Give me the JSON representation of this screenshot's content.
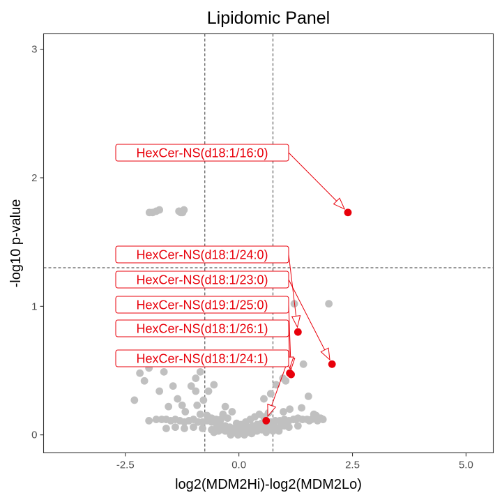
{
  "chart_data": {
    "type": "scatter",
    "title": "Lipidomic Panel",
    "xlabel": "log2(MDM2Hi)-log2(MDM2Lo)",
    "ylabel": "-log10 p-value",
    "xlim": [
      -4.3,
      5.6
    ],
    "ylim": [
      -0.14,
      3.12
    ],
    "xticks": [
      -2.5,
      0.0,
      2.5,
      5.0
    ],
    "xtick_labels": [
      "-2.5",
      "0.0",
      "2.5",
      "5.0"
    ],
    "yticks": [
      0,
      1,
      2,
      3
    ],
    "ytick_labels": [
      "0",
      "1",
      "2",
      "3"
    ],
    "grid": false,
    "reference_lines": {
      "vertical": [
        -0.75,
        0.75
      ],
      "horizontal": [
        1.3
      ]
    },
    "colors": {
      "background": "#ffffff",
      "nonsignificant": "#c0c0c0",
      "highlight": "#e8000b",
      "reference": "#333333"
    },
    "series": [
      {
        "role": "background",
        "points": [
          [
            -1.97,
            1.73
          ],
          [
            -1.9,
            1.73
          ],
          [
            -1.82,
            1.74
          ],
          [
            -1.75,
            1.75
          ],
          [
            -1.32,
            1.74
          ],
          [
            -1.28,
            1.73
          ],
          [
            -1.24,
            1.73
          ],
          [
            -1.21,
            1.75
          ],
          [
            1.22,
            1.02
          ],
          [
            1.98,
            1.02
          ],
          [
            -2.28,
            0.58
          ],
          [
            -1.98,
            0.52
          ],
          [
            -2.18,
            0.48
          ],
          [
            -1.65,
            0.49
          ],
          [
            -2.08,
            0.42
          ],
          [
            -1.15,
            0.57
          ],
          [
            -0.85,
            0.49
          ],
          [
            -0.95,
            0.44
          ],
          [
            -1.05,
            0.38
          ],
          [
            -1.45,
            0.38
          ],
          [
            -2.3,
            0.27
          ],
          [
            -1.75,
            0.34
          ],
          [
            -1.55,
            0.22
          ],
          [
            -1.35,
            0.28
          ],
          [
            -1.25,
            0.23
          ],
          [
            -1.18,
            0.18
          ],
          [
            -0.95,
            0.34
          ],
          [
            -0.92,
            0.23
          ],
          [
            -0.85,
            0.16
          ],
          [
            -0.78,
            0.27
          ],
          [
            -0.67,
            0.34
          ],
          [
            -0.55,
            0.39
          ],
          [
            -0.4,
            0.12
          ],
          [
            -0.3,
            0.22
          ],
          [
            -0.15,
            0.18
          ],
          [
            0.55,
            0.28
          ],
          [
            0.7,
            0.32
          ],
          [
            0.82,
            0.39
          ],
          [
            0.97,
            0.44
          ],
          [
            1.03,
            0.42
          ],
          [
            1.42,
            0.55
          ],
          [
            1.53,
            0.3
          ],
          [
            1.38,
            0.21
          ],
          [
            1.12,
            0.2
          ],
          [
            0.98,
            0.18
          ],
          [
            1.65,
            0.16
          ],
          [
            1.8,
            0.13
          ],
          [
            1.55,
            0.11
          ],
          [
            1.25,
            0.12
          ],
          [
            1.7,
            0.15
          ],
          [
            1.73,
            0.11
          ],
          [
            1.6,
            0.12
          ],
          [
            1.85,
            0.12
          ],
          [
            -1.98,
            0.11
          ],
          [
            -1.82,
            0.12
          ],
          [
            -1.7,
            0.12
          ],
          [
            -1.6,
            0.12
          ],
          [
            -1.5,
            0.11
          ],
          [
            -1.4,
            0.12
          ],
          [
            -1.3,
            0.11
          ],
          [
            -1.2,
            0.1
          ],
          [
            -1.1,
            0.11
          ],
          [
            -1.0,
            0.12
          ],
          [
            -0.9,
            0.1
          ],
          [
            -0.8,
            0.1
          ],
          [
            -0.7,
            0.11
          ],
          [
            -0.6,
            0.1
          ],
          [
            -0.5,
            0.09
          ],
          [
            -0.4,
            0.08
          ],
          [
            -0.3,
            0.07
          ],
          [
            -0.2,
            0.06
          ],
          [
            -0.1,
            0.05
          ],
          [
            0.0,
            0.04
          ],
          [
            0.1,
            0.05
          ],
          [
            0.2,
            0.06
          ],
          [
            0.3,
            0.07
          ],
          [
            0.4,
            0.08
          ],
          [
            0.5,
            0.09
          ],
          [
            0.6,
            0.1
          ],
          [
            0.7,
            0.1
          ],
          [
            0.8,
            0.11
          ],
          [
            0.9,
            0.11
          ],
          [
            1.0,
            0.12
          ],
          [
            1.1,
            0.11
          ],
          [
            1.2,
            0.12
          ],
          [
            1.3,
            0.13
          ],
          [
            1.4,
            0.12
          ],
          [
            1.5,
            0.12
          ],
          [
            -1.6,
            0.05
          ],
          [
            -1.4,
            0.06
          ],
          [
            -1.2,
            0.05
          ],
          [
            -1.0,
            0.06
          ],
          [
            -0.8,
            0.05
          ],
          [
            -0.6,
            0.04
          ],
          [
            -0.5,
            0.05
          ],
          [
            -0.4,
            0.04
          ],
          [
            -0.3,
            0.03
          ],
          [
            -0.2,
            0.02
          ],
          [
            -0.1,
            0.02
          ],
          [
            0.0,
            0.01
          ],
          [
            0.1,
            0.01
          ],
          [
            0.2,
            0.02
          ],
          [
            0.3,
            0.02
          ],
          [
            0.4,
            0.03
          ],
          [
            0.5,
            0.04
          ],
          [
            0.6,
            0.05
          ],
          [
            0.7,
            0.05
          ],
          [
            0.8,
            0.06
          ],
          [
            0.9,
            0.06
          ],
          [
            1.0,
            0.07
          ],
          [
            1.1,
            0.06
          ],
          [
            1.3,
            0.07
          ],
          [
            -0.7,
            0.15
          ],
          [
            -0.6,
            0.13
          ],
          [
            -0.5,
            0.12
          ],
          [
            -0.35,
            0.16
          ],
          [
            -0.25,
            0.13
          ],
          [
            -0.05,
            0.09
          ],
          [
            0.05,
            0.08
          ],
          [
            0.15,
            0.1
          ],
          [
            0.25,
            0.12
          ],
          [
            0.35,
            0.14
          ],
          [
            0.45,
            0.16
          ],
          [
            0.55,
            0.14
          ],
          [
            0.65,
            0.17
          ],
          [
            -0.55,
            0.02
          ],
          [
            -0.45,
            0.03
          ],
          [
            0.6,
            0.02
          ],
          [
            0.75,
            0.03
          ],
          [
            0.88,
            0.03
          ],
          [
            -0.02,
            0.0
          ],
          [
            0.12,
            0.0
          ],
          [
            -0.18,
            0.0
          ],
          [
            0.28,
            0.01
          ]
        ]
      },
      {
        "role": "highlighted",
        "points": [
          {
            "x": 2.4,
            "y": 1.73,
            "label": "HexCer-NS(d18:1/16:0)"
          },
          {
            "x": 1.3,
            "y": 0.8,
            "label": "HexCer-NS(d18:1/24:0)"
          },
          {
            "x": 2.05,
            "y": 0.55,
            "label": "HexCer-NS(d18:1/23:0)"
          },
          {
            "x": 1.15,
            "y": 0.47,
            "label": "HexCer-NS(d19:1/25:0)"
          },
          {
            "x": 1.12,
            "y": 0.48,
            "label": "HexCer-NS(d18:1/26:1)"
          },
          {
            "x": 0.6,
            "y": 0.11,
            "label": "HexCer-NS(d18:1/24:1)"
          }
        ]
      }
    ]
  }
}
